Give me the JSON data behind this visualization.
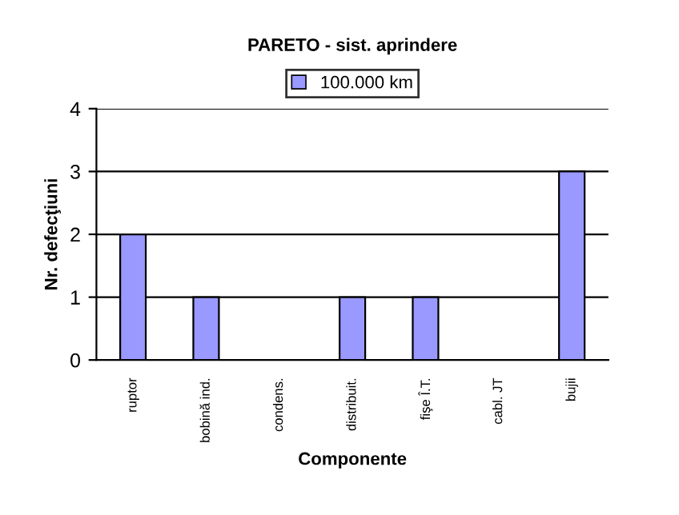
{
  "chart_data": {
    "type": "bar",
    "title": "PARETO - sist. aprindere",
    "xlabel": "Componente",
    "ylabel": "Nr. defecţiuni",
    "categories": [
      "ruptor",
      "bobină ind.",
      "condens.",
      "distribuit.",
      "fişe Î.T.",
      "cabl. JT",
      "bujii"
    ],
    "series": [
      {
        "name": "100.000 km",
        "color": "#9999ff",
        "values": [
          2,
          1,
          0,
          1,
          1,
          0,
          3
        ]
      }
    ],
    "ylim": [
      0,
      4
    ],
    "yticks": [
      0,
      1,
      2,
      3,
      4
    ],
    "grid": "y",
    "legend": "top"
  }
}
